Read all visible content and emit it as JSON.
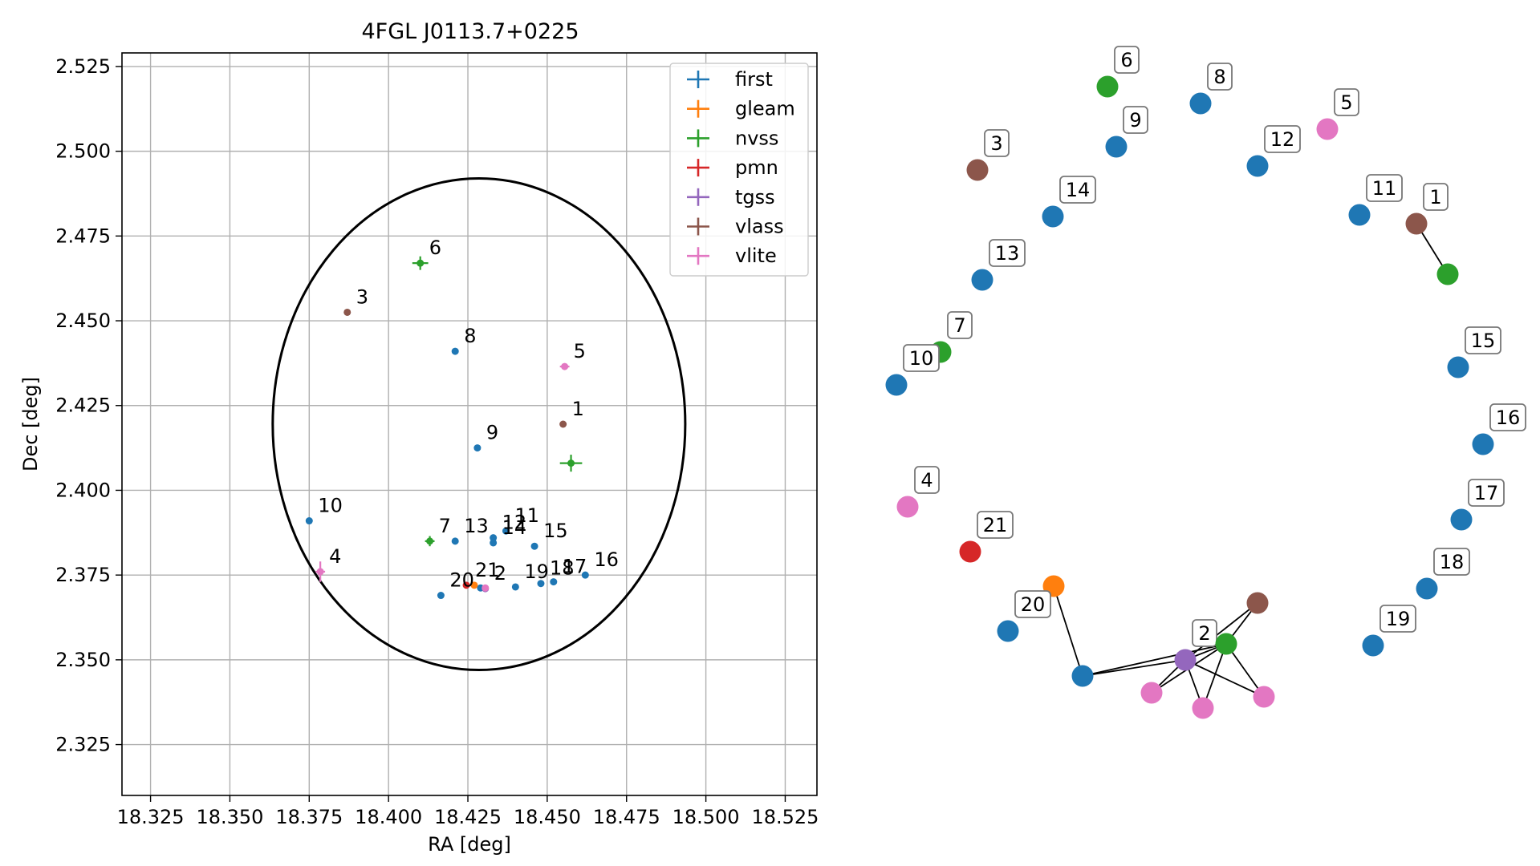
{
  "chart_data": [
    {
      "type": "scatter",
      "title": "4FGL J0113.7+0225",
      "xlabel": "RA [deg]",
      "ylabel": "Dec [deg]",
      "xlim": [
        18.316,
        18.535
      ],
      "ylim": [
        2.31,
        2.529
      ],
      "xticks": [
        "18.325",
        "18.350",
        "18.375",
        "18.400",
        "18.425",
        "18.450",
        "18.475",
        "18.500",
        "18.525"
      ],
      "yticks": [
        "2.325",
        "2.350",
        "2.375",
        "2.400",
        "2.425",
        "2.450",
        "2.475",
        "2.500",
        "2.525"
      ],
      "grid": true,
      "legend_position": "top-right",
      "ellipse": {
        "center": [
          18.4285,
          2.4195
        ],
        "ra_radius": 0.065,
        "dec_radius": 0.0725
      },
      "series": [
        {
          "name": "first",
          "color": "#1f77b4",
          "points": [
            {
              "label": "8",
              "x": 18.421,
              "y": 2.441
            },
            {
              "label": "9",
              "x": 18.428,
              "y": 2.4125
            },
            {
              "label": "10",
              "x": 18.375,
              "y": 2.391
            },
            {
              "label": "13",
              "x": 18.421,
              "y": 2.385
            },
            {
              "label": "12",
              "x": 18.433,
              "y": 2.386
            },
            {
              "label": "14",
              "x": 18.433,
              "y": 2.3845
            },
            {
              "label": "11",
              "x": 18.437,
              "y": 2.388
            },
            {
              "label": "15",
              "x": 18.446,
              "y": 2.3835
            },
            {
              "label": "16",
              "x": 18.462,
              "y": 2.375
            },
            {
              "label": "17",
              "x": 18.452,
              "y": 2.373
            },
            {
              "label": "18",
              "x": 18.448,
              "y": 2.3725
            },
            {
              "label": "19",
              "x": 18.44,
              "y": 2.3715
            },
            {
              "label": "20",
              "x": 18.4165,
              "y": 2.369
            },
            {
              "label": "",
              "x": 18.429,
              "y": 2.3712
            }
          ]
        },
        {
          "name": "gleam",
          "color": "#ff7f0e",
          "points": [
            {
              "label": "",
              "x": 18.427,
              "y": 2.372
            }
          ]
        },
        {
          "name": "nvss",
          "color": "#2ca02c",
          "points": [
            {
              "label": "6",
              "x": 18.41,
              "y": 2.467,
              "xerr": 0.0025,
              "yerr": 0.002
            },
            {
              "label": "7",
              "x": 18.413,
              "y": 2.385,
              "xerr": 0.0015,
              "yerr": 0.0015
            },
            {
              "label": "",
              "x": 18.4575,
              "y": 2.408,
              "xerr": 0.0035,
              "yerr": 0.0025
            }
          ]
        },
        {
          "name": "pmn",
          "color": "#d62728",
          "points": [
            {
              "label": "21",
              "x": 18.4245,
              "y": 2.372
            }
          ]
        },
        {
          "name": "tgss",
          "color": "#9467bd",
          "points": [
            {
              "label": "2",
              "x": 18.4305,
              "y": 2.371
            }
          ]
        },
        {
          "name": "vlass",
          "color": "#8c564b",
          "points": [
            {
              "label": "3",
              "x": 18.387,
              "y": 2.4525
            },
            {
              "label": "1",
              "x": 18.455,
              "y": 2.4195
            }
          ]
        },
        {
          "name": "vlite",
          "color": "#e377c2",
          "points": [
            {
              "label": "5",
              "x": 18.4555,
              "y": 2.4365,
              "xerr": 0.0015,
              "yerr": 0.0005
            },
            {
              "label": "4",
              "x": 18.3785,
              "y": 2.376,
              "xerr": 0.0015,
              "yerr": 0.003
            },
            {
              "label": "",
              "x": 18.4305,
              "y": 2.3712
            }
          ]
        }
      ]
    },
    {
      "type": "network",
      "nodes": [
        {
          "id": "n6",
          "label": "6",
          "color": "#2ca02c"
        },
        {
          "id": "n8",
          "label": "8",
          "color": "#1f77b4"
        },
        {
          "id": "n5",
          "label": "5",
          "color": "#e377c2"
        },
        {
          "id": "n9",
          "label": "9",
          "color": "#1f77b4"
        },
        {
          "id": "n3",
          "label": "3",
          "color": "#8c564b"
        },
        {
          "id": "n12",
          "label": "12",
          "color": "#1f77b4"
        },
        {
          "id": "n14",
          "label": "14",
          "color": "#1f77b4"
        },
        {
          "id": "n11",
          "label": "11",
          "color": "#1f77b4"
        },
        {
          "id": "n1",
          "label": "1",
          "color": "#8c564b"
        },
        {
          "id": "n1b",
          "label": "",
          "color": "#2ca02c"
        },
        {
          "id": "n13",
          "label": "13",
          "color": "#1f77b4"
        },
        {
          "id": "n7",
          "label": "7",
          "color": "#2ca02c"
        },
        {
          "id": "n10",
          "label": "10",
          "color": "#1f77b4"
        },
        {
          "id": "n15",
          "label": "15",
          "color": "#1f77b4"
        },
        {
          "id": "n16",
          "label": "16",
          "color": "#1f77b4"
        },
        {
          "id": "n4",
          "label": "4",
          "color": "#e377c2"
        },
        {
          "id": "n17",
          "label": "17",
          "color": "#1f77b4"
        },
        {
          "id": "n21",
          "label": "21",
          "color": "#d62728"
        },
        {
          "id": "n18",
          "label": "18",
          "color": "#1f77b4"
        },
        {
          "id": "ng",
          "label": "",
          "color": "#ff7f0e"
        },
        {
          "id": "nv",
          "label": "",
          "color": "#8c564b"
        },
        {
          "id": "n20",
          "label": "20",
          "color": "#1f77b4"
        },
        {
          "id": "n19",
          "label": "19",
          "color": "#1f77b4"
        },
        {
          "id": "n2",
          "label": "2",
          "color": "#9467bd"
        },
        {
          "id": "nn",
          "label": "",
          "color": "#2ca02c"
        },
        {
          "id": "nf",
          "label": "",
          "color": "#1f77b4"
        },
        {
          "id": "np1",
          "label": "",
          "color": "#e377c2"
        },
        {
          "id": "np2",
          "label": "",
          "color": "#e377c2"
        },
        {
          "id": "np3",
          "label": "",
          "color": "#e377c2"
        }
      ],
      "edges": [
        [
          "n1",
          "n1b"
        ],
        [
          "ng",
          "nf"
        ],
        [
          "nf",
          "n2"
        ],
        [
          "nf",
          "nn"
        ],
        [
          "n2",
          "nn"
        ],
        [
          "n2",
          "nv"
        ],
        [
          "nn",
          "nv"
        ],
        [
          "n2",
          "np1"
        ],
        [
          "n2",
          "np2"
        ],
        [
          "n2",
          "np3"
        ],
        [
          "nn",
          "np1"
        ],
        [
          "nn",
          "np2"
        ],
        [
          "nn",
          "np3"
        ]
      ]
    }
  ]
}
